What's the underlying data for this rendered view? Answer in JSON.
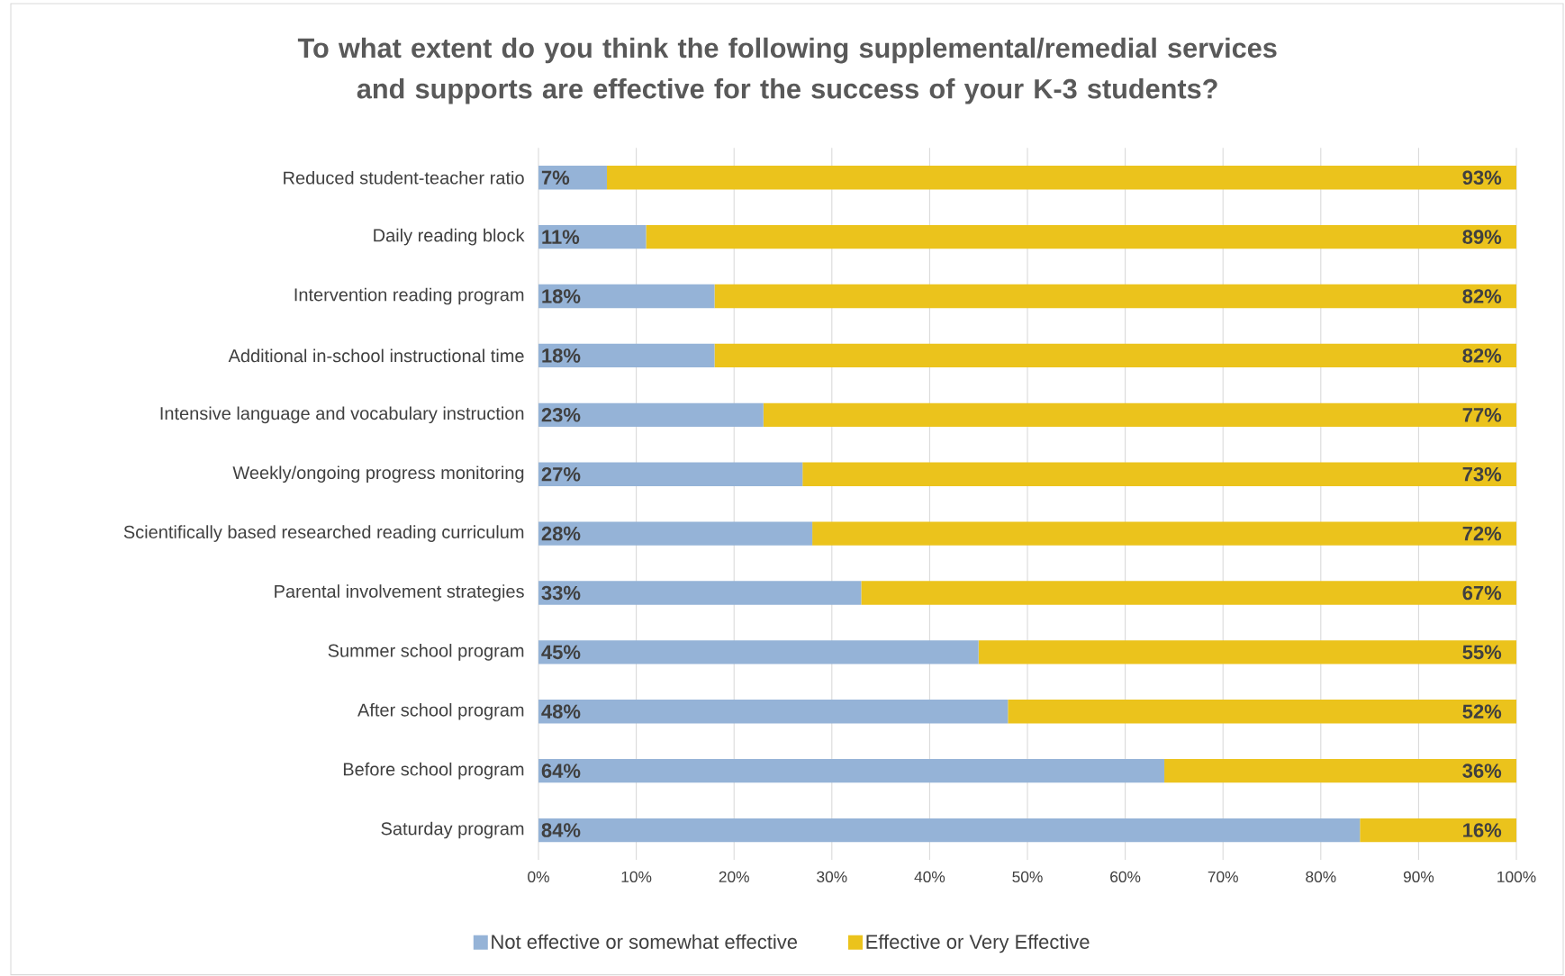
{
  "chart_data": {
    "type": "bar",
    "orientation": "horizontal",
    "stacked": true,
    "title": "To what extent do you think the following supplemental/remedial services and supports are effective for the success of your K-3 students?",
    "categories": [
      "Reduced student-teacher ratio",
      "Daily reading block",
      "Intervention reading program",
      "Additional in-school instructional time",
      "Intensive language and vocabulary instruction",
      "Weekly/ongoing progress monitoring",
      "Scientifically based researched reading curriculum",
      "Parental involvement strategies",
      "Summer school program",
      "After school program",
      "Before school program",
      "Saturday program"
    ],
    "series": [
      {
        "name": "Not effective or somewhat effective",
        "color": "#95b3d7",
        "values": [
          7,
          11,
          18,
          18,
          23,
          27,
          28,
          33,
          45,
          48,
          64,
          84
        ],
        "value_labels": [
          "7%",
          "11%",
          "18%",
          "18%",
          "23%",
          "27%",
          "28%",
          "33%",
          "45%",
          "48%",
          "64%",
          "84%"
        ]
      },
      {
        "name": "Effective or Very Effective",
        "color": "#ebc31c",
        "values": [
          93,
          89,
          82,
          82,
          77,
          73,
          72,
          67,
          55,
          52,
          36,
          16
        ],
        "value_labels": [
          "93%",
          "89%",
          "82%",
          "82%",
          "77%",
          "73%",
          "72%",
          "67%",
          "55%",
          "52%",
          "36%",
          "16%"
        ]
      }
    ],
    "xlim": [
      0,
      100
    ],
    "xticks": [
      {
        "value": 0,
        "label": "0%"
      },
      {
        "value": 10,
        "label": "10%"
      },
      {
        "value": 20,
        "label": "20%"
      },
      {
        "value": 30,
        "label": "30%"
      },
      {
        "value": 40,
        "label": "40%"
      },
      {
        "value": 50,
        "label": "50%"
      },
      {
        "value": 60,
        "label": "60%"
      },
      {
        "value": 70,
        "label": "70%"
      },
      {
        "value": 80,
        "label": "80%"
      },
      {
        "value": 90,
        "label": "90%"
      },
      {
        "value": 100,
        "label": "100%"
      }
    ],
    "grid": "x",
    "legend": "bottom"
  }
}
